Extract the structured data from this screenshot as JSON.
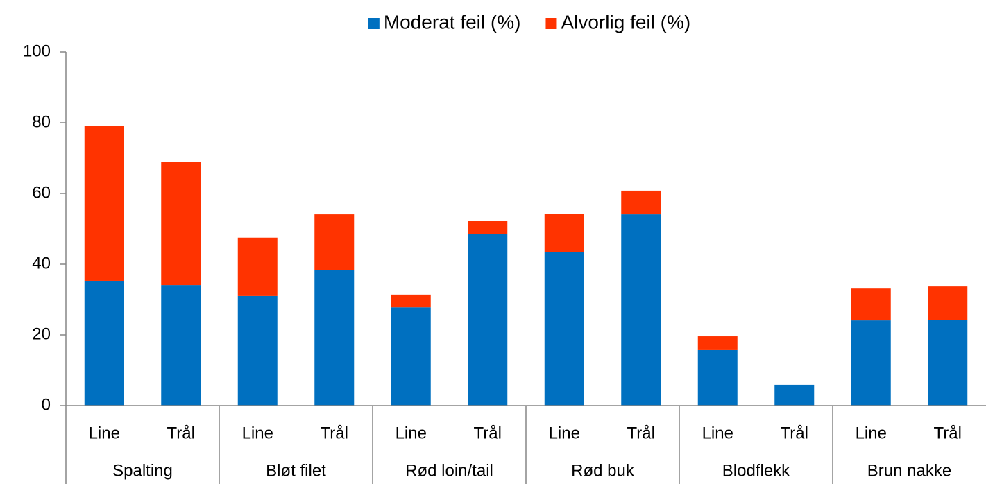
{
  "chart_data": {
    "type": "stacked_bar",
    "categories": [
      "Line",
      "Trål",
      "Line",
      "Trål",
      "Line",
      "Trål",
      "Line",
      "Trål",
      "Line",
      "Trål",
      "Line",
      "Trål"
    ],
    "groups": [
      "Spalting",
      "Bløt filet",
      "Rød loin/tail",
      "Rød buk",
      "Blodflekk",
      "Brun nakke"
    ],
    "series": [
      {
        "name": "Moderat feil (%)",
        "color": "#0070c0",
        "values": [
          35.3,
          34.1,
          31.0,
          38.4,
          27.8,
          48.6,
          43.5,
          54.1,
          15.7,
          5.9,
          24.1,
          24.3
        ]
      },
      {
        "name": "Alvorlig feil (%)",
        "color": "#ff3300",
        "values": [
          43.9,
          34.9,
          16.5,
          15.7,
          3.6,
          3.6,
          10.8,
          6.7,
          3.9,
          0,
          9.0,
          9.4
        ]
      }
    ],
    "ylim": [
      0,
      100
    ],
    "yticks": [
      0,
      20,
      40,
      60,
      80,
      100
    ],
    "legend": "top"
  }
}
